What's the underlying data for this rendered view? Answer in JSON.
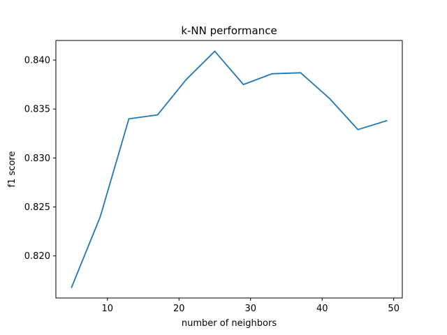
{
  "chart_data": {
    "type": "line",
    "title": "k-NN performance",
    "xlabel": "number of neighbors",
    "ylabel": "f1 score",
    "x": [
      5,
      9,
      13,
      17,
      21,
      25,
      29,
      33,
      37,
      41,
      45,
      49
    ],
    "series": [
      {
        "values": [
          0.8168,
          0.824,
          0.834,
          0.8344,
          0.838,
          0.8409,
          0.8375,
          0.8386,
          0.8387,
          0.8361,
          0.8329,
          0.8338
        ]
      }
    ],
    "xlim": [
      2.8,
      51.2
    ],
    "ylim": [
      0.8157,
      0.842
    ],
    "xticks": [
      10,
      20,
      30,
      40,
      50
    ],
    "yticks": [
      0.82,
      0.825,
      0.83,
      0.835,
      0.84
    ],
    "xtick_labels": [
      "10",
      "20",
      "30",
      "40",
      "50"
    ],
    "ytick_labels": [
      "0.820",
      "0.825",
      "0.830",
      "0.835",
      "0.840"
    ],
    "grid": false,
    "line_color": "#1f77b4"
  }
}
